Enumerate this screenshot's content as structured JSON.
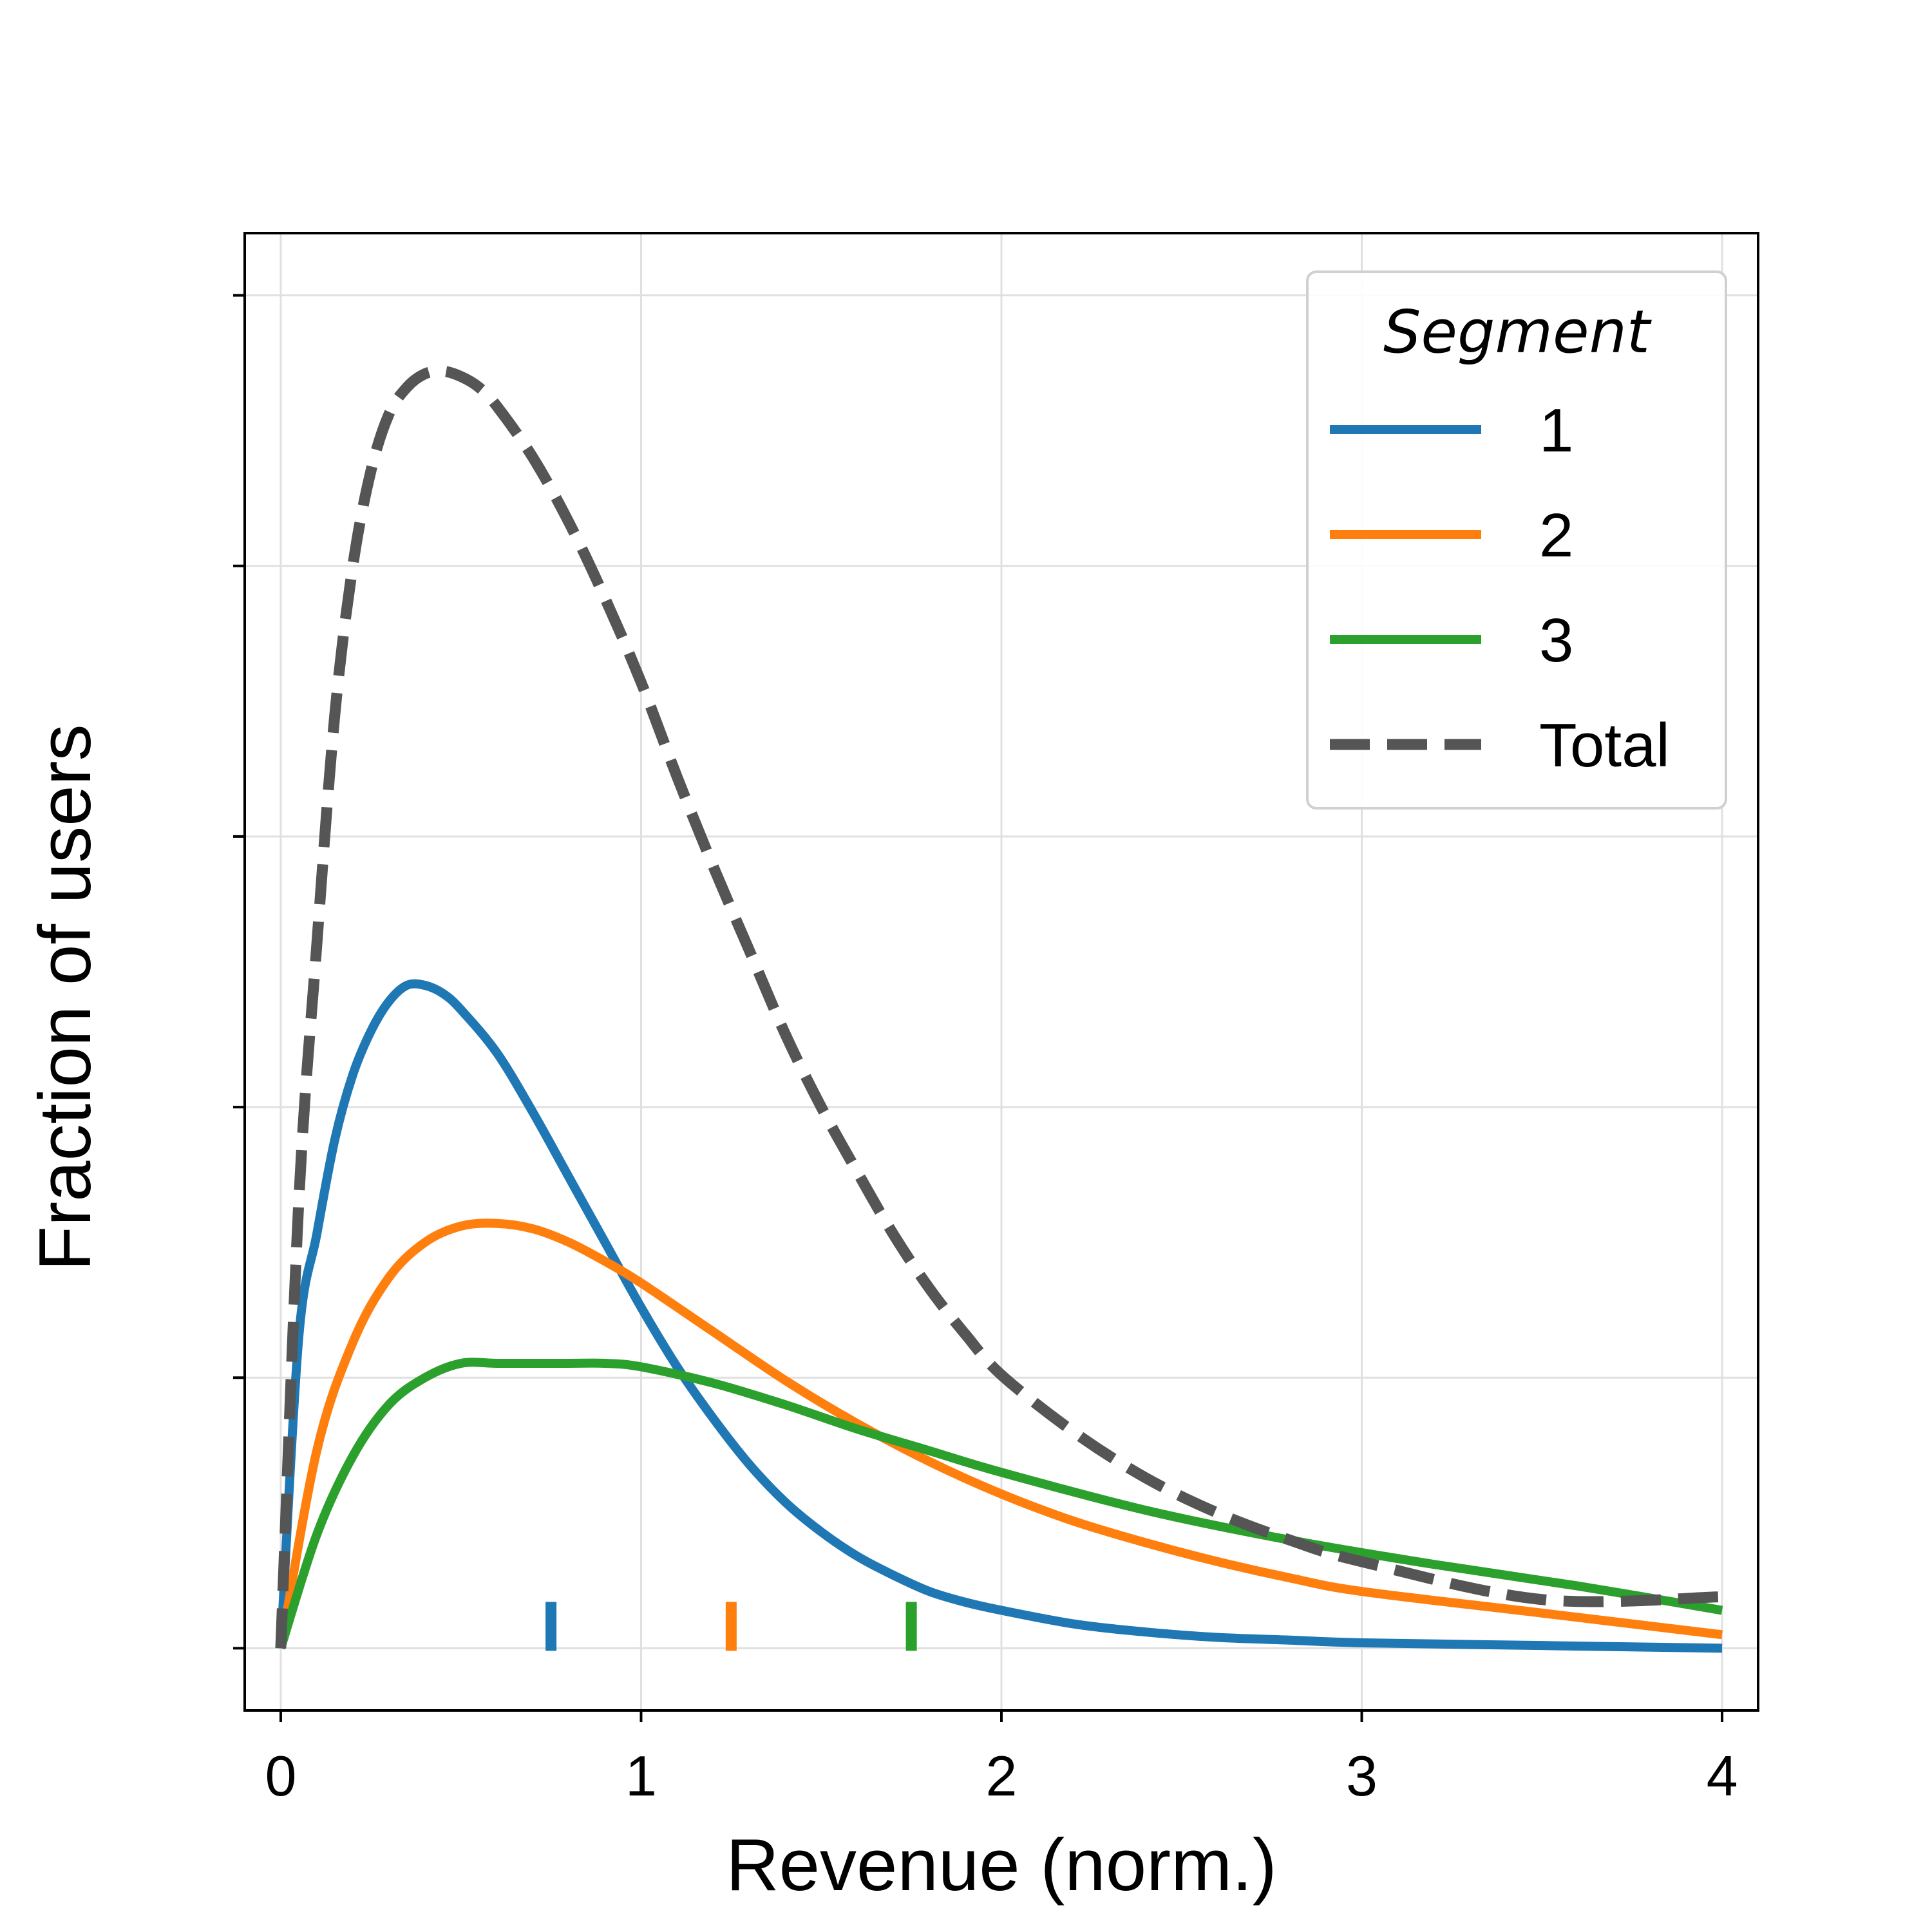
{
  "chart_data": {
    "type": "line",
    "title": "",
    "xlabel": "Revenue (norm.)",
    "ylabel": "Fraction of users",
    "xlim": [
      -0.1,
      4.1
    ],
    "ylim": [
      -0.023,
      0.523
    ],
    "x_ticks": [
      0,
      1,
      2,
      3,
      4
    ],
    "x_tick_labels": [
      "0",
      "1",
      "2",
      "3",
      "4"
    ],
    "y_ticks": [
      0,
      0.1,
      0.2,
      0.3,
      0.4,
      0.5
    ],
    "y_tick_labels": [
      "",
      "",
      "",
      "",
      "",
      ""
    ],
    "grid": true,
    "legend": {
      "title": "Segment",
      "placement": "top-right"
    },
    "series": [
      {
        "name": "1",
        "color": "#1f77b4",
        "style": "solid",
        "x": [
          0,
          0.05,
          0.1,
          0.15,
          0.2,
          0.25,
          0.3,
          0.35,
          0.4,
          0.45,
          0.5,
          0.6,
          0.7,
          0.8,
          0.9,
          1.0,
          1.1,
          1.2,
          1.3,
          1.4,
          1.5,
          1.6,
          1.7,
          1.8,
          1.9,
          2.0,
          2.2,
          2.4,
          2.6,
          2.8,
          3.0,
          3.5,
          4.0
        ],
        "y": [
          0,
          0.115,
          0.153,
          0.188,
          0.212,
          0.228,
          0.239,
          0.245,
          0.245,
          0.242,
          0.236,
          0.22,
          0.198,
          0.174,
          0.15,
          0.126,
          0.104,
          0.085,
          0.068,
          0.054,
          0.043,
          0.034,
          0.027,
          0.021,
          0.017,
          0.014,
          0.009,
          0.006,
          0.004,
          0.003,
          0.002,
          0.001,
          0.0
        ]
      },
      {
        "name": "2",
        "color": "#ff7f0e",
        "style": "solid",
        "x": [
          0,
          0.1,
          0.2,
          0.3,
          0.4,
          0.5,
          0.6,
          0.7,
          0.8,
          0.9,
          1.0,
          1.2,
          1.4,
          1.6,
          1.8,
          2.0,
          2.2,
          2.4,
          2.6,
          2.8,
          3.0,
          3.5,
          4.0
        ],
        "y": [
          0,
          0.073,
          0.113,
          0.137,
          0.15,
          0.156,
          0.157,
          0.155,
          0.15,
          0.143,
          0.135,
          0.117,
          0.099,
          0.083,
          0.069,
          0.057,
          0.047,
          0.039,
          0.032,
          0.026,
          0.021,
          0.013,
          0.005
        ]
      },
      {
        "name": "3",
        "color": "#2ca02c",
        "style": "solid",
        "x": [
          0,
          0.1,
          0.2,
          0.3,
          0.4,
          0.5,
          0.6,
          0.7,
          0.8,
          0.9,
          1.0,
          1.2,
          1.4,
          1.6,
          1.8,
          2.0,
          2.4,
          2.8,
          3.2,
          3.6,
          4.0
        ],
        "y": [
          0,
          0.042,
          0.071,
          0.09,
          0.1,
          0.1053,
          0.1053,
          0.1053,
          0.1053,
          0.1053,
          0.104,
          0.098,
          0.09,
          0.081,
          0.073,
          0.065,
          0.051,
          0.04,
          0.031,
          0.023,
          0.014
        ]
      },
      {
        "name": "Total",
        "color": "#555555",
        "style": "dashed",
        "x": [
          0,
          0.05,
          0.1,
          0.15,
          0.2,
          0.25,
          0.3,
          0.35,
          0.4,
          0.45,
          0.5,
          0.55,
          0.6,
          0.7,
          0.8,
          0.9,
          1.0,
          1.1,
          1.2,
          1.3,
          1.4,
          1.5,
          1.6,
          1.7,
          1.8,
          1.9,
          2.0,
          2.2,
          2.4,
          2.6,
          2.8,
          3.0,
          3.5,
          4.0
        ],
        "y": [
          0,
          0.165,
          0.26,
          0.345,
          0.4,
          0.435,
          0.456,
          0.466,
          0.471,
          0.472,
          0.47,
          0.466,
          0.459,
          0.44,
          0.416,
          0.388,
          0.357,
          0.322,
          0.289,
          0.258,
          0.227,
          0.2,
          0.176,
          0.153,
          0.133,
          0.116,
          0.101,
          0.08,
          0.063,
          0.05,
          0.04,
          0.032,
          0.018,
          0.019
        ]
      }
    ],
    "markers": [
      {
        "x": 0.75,
        "color": "#1f77b4"
      },
      {
        "x": 1.25,
        "color": "#ff7f0e"
      },
      {
        "x": 1.75,
        "color": "#2ca02c"
      }
    ]
  }
}
